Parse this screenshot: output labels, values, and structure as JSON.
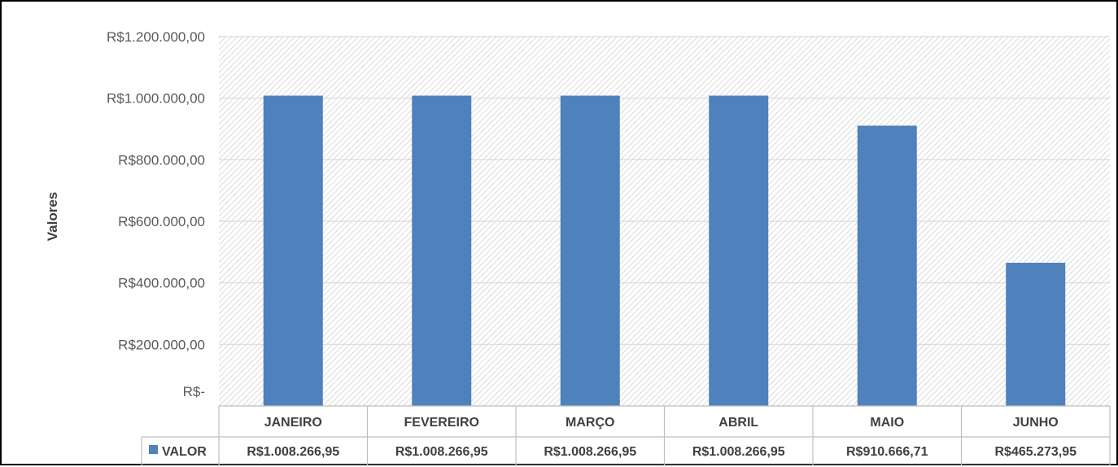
{
  "chart_data": {
    "type": "bar",
    "title": "",
    "xlabel": "",
    "ylabel": "Valores",
    "ylim": [
      0,
      1200000
    ],
    "ytick_values": [
      0,
      200000,
      400000,
      600000,
      800000,
      1000000,
      1200000
    ],
    "ytick_labels": [
      "R$-",
      "R$200.000,00",
      "R$400.000,00",
      "R$600.000,00",
      "R$800.000,00",
      "R$1.000.000,00",
      "R$1.200.000,00"
    ],
    "categories": [
      "JANEIRO",
      "FEVEREIRO",
      "MARÇO",
      "ABRIL",
      "MAIO",
      "JUNHO"
    ],
    "series": [
      {
        "name": "VALOR",
        "values": [
          1008266.95,
          1008266.95,
          1008266.95,
          1008266.95,
          910666.71,
          465273.95
        ],
        "value_labels": [
          "R$1.008.266,95",
          "R$1.008.266,95",
          "R$1.008.266,95",
          "R$1.008.266,95",
          "R$910.666,71",
          "R$465.273,95"
        ],
        "color": "#4F81BD"
      }
    ],
    "grid": true,
    "legend": "data-table",
    "plot_background": "hatched",
    "colors": {
      "bar": "#4F81BD",
      "grid": "#D9D9D9",
      "hatch": "#D0D0D0",
      "table_border": "#BFBFBF"
    }
  }
}
